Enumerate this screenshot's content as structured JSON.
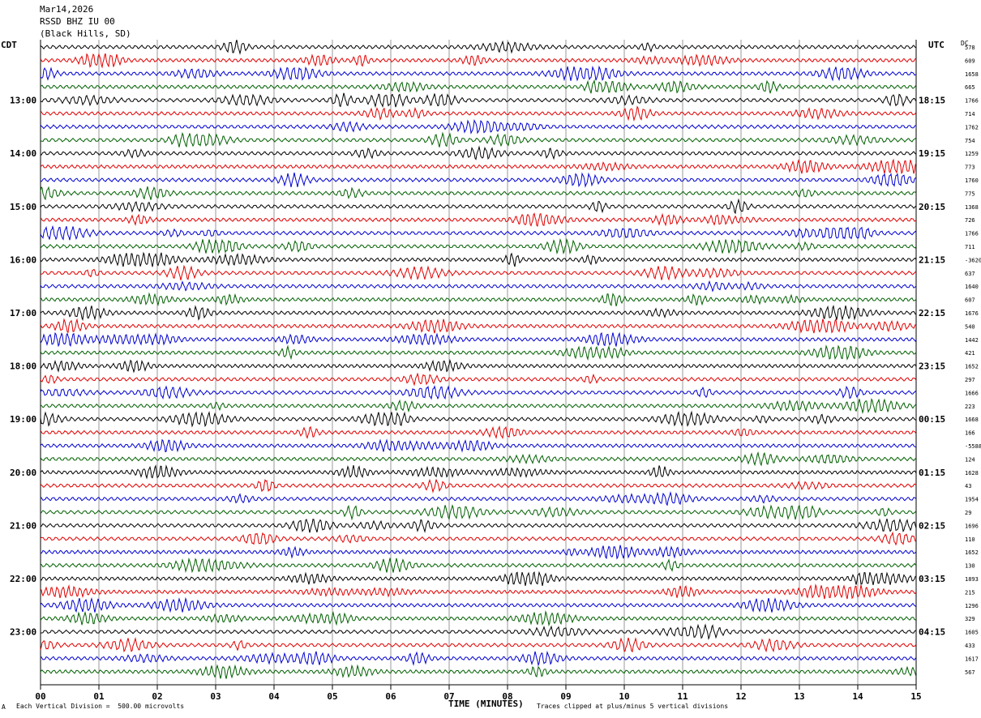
{
  "header": {
    "date": "Mar14,2026",
    "station": "RSSD BHZ IU 00",
    "location": "(Black Hills, SD)"
  },
  "left_tz": "CDT",
  "right_tz": "UTC",
  "dc_label": "DC",
  "footer": {
    "scale_note": "Each Vertical Division =  500.00 microvolts",
    "clip_note": "Traces clipped at plus/minus 5 vertical divisions",
    "corner_mark": "A"
  },
  "chart_data": {
    "type": "line",
    "title": "",
    "xlabel": "TIME (MINUTES)",
    "ylabel": "",
    "xlim": [
      0,
      15
    ],
    "x_ticks": [
      "00",
      "01",
      "02",
      "03",
      "04",
      "05",
      "06",
      "07",
      "08",
      "09",
      "10",
      "11",
      "12",
      "13",
      "14",
      "15"
    ],
    "trace_count": 48,
    "trace_colors": [
      "#000000",
      "#e00000",
      "#0000d0",
      "#006000"
    ],
    "left_labels": [
      {
        "trace": 4,
        "text": "13:00"
      },
      {
        "trace": 8,
        "text": "14:00"
      },
      {
        "trace": 12,
        "text": "15:00"
      },
      {
        "trace": 16,
        "text": "16:00"
      },
      {
        "trace": 20,
        "text": "17:00"
      },
      {
        "trace": 24,
        "text": "18:00"
      },
      {
        "trace": 28,
        "text": "19:00"
      },
      {
        "trace": 32,
        "text": "20:00"
      },
      {
        "trace": 36,
        "text": "21:00"
      },
      {
        "trace": 40,
        "text": "22:00"
      },
      {
        "trace": 44,
        "text": "23:00"
      }
    ],
    "right_labels": [
      {
        "trace": 4,
        "text": "18:15"
      },
      {
        "trace": 8,
        "text": "19:15"
      },
      {
        "trace": 12,
        "text": "20:15"
      },
      {
        "trace": 16,
        "text": "21:15"
      },
      {
        "trace": 20,
        "text": "22:15"
      },
      {
        "trace": 24,
        "text": "23:15"
      },
      {
        "trace": 28,
        "text": "00:15"
      },
      {
        "trace": 32,
        "text": "01:15"
      },
      {
        "trace": 36,
        "text": "02:15"
      },
      {
        "trace": 40,
        "text": "03:15"
      },
      {
        "trace": 44,
        "text": "04:15"
      }
    ],
    "dc_values": [
      "578",
      "609",
      "1658",
      "665",
      "1766",
      "714",
      "1762",
      "754",
      "1259",
      "773",
      "1760",
      "775",
      "1368",
      "726",
      "1766",
      "711",
      "-3620",
      "637",
      "1640",
      "607",
      "1676",
      "540",
      "1442",
      "421",
      "1652",
      "297",
      "1666",
      "223",
      "1668",
      "166",
      "-5588",
      "124",
      "1628",
      "43",
      "1954",
      "29",
      "1696",
      "110",
      "1652",
      "130",
      "1893",
      "215",
      "1296",
      "329",
      "1605",
      "433",
      "1617",
      "567"
    ],
    "amplitude_seed": 7
  }
}
